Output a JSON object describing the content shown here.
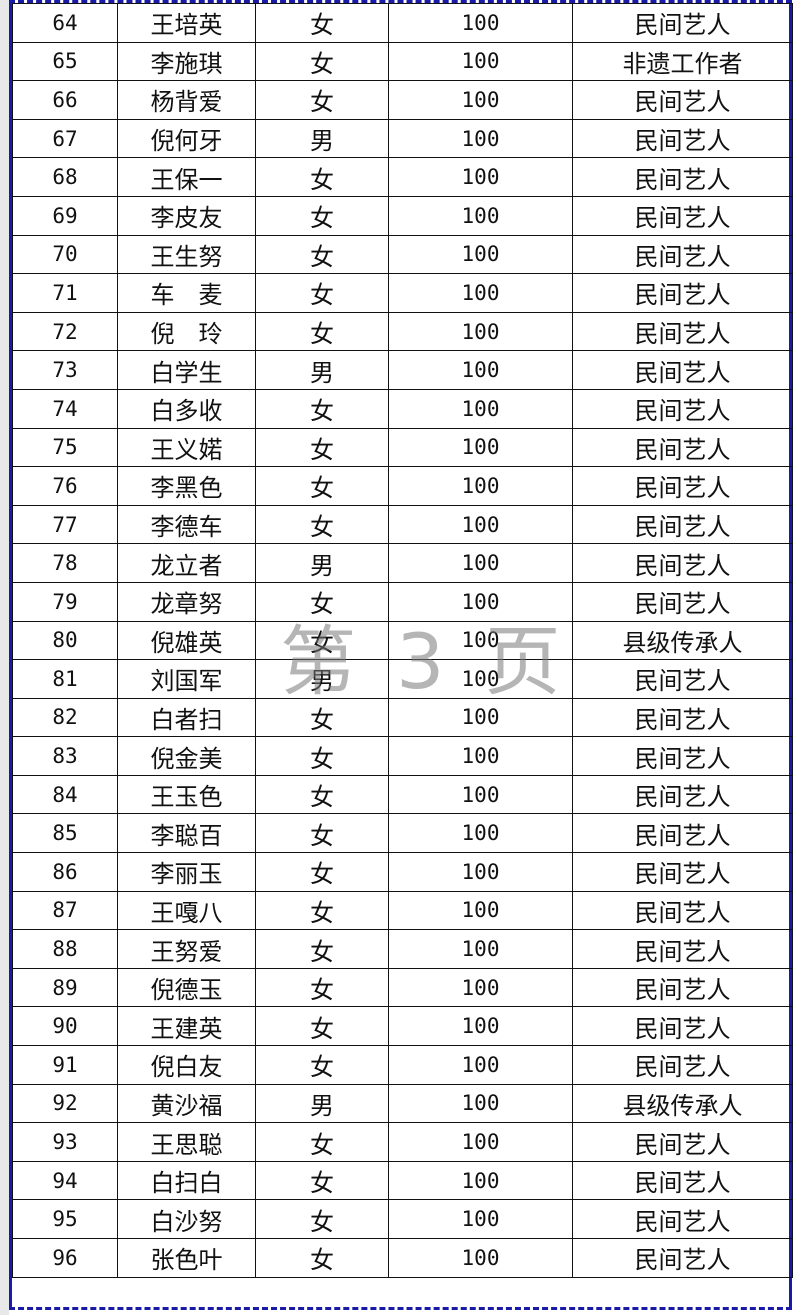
{
  "watermark": "第 3 页",
  "colors": {
    "page_border": "#1a1aa8",
    "grid": "#111111",
    "watermark": "#787878"
  },
  "rows": [
    [
      "64",
      "王培英",
      "女",
      "100",
      "民间艺人"
    ],
    [
      "65",
      "李施琪",
      "女",
      "100",
      "非遗工作者"
    ],
    [
      "66",
      "杨背爱",
      "女",
      "100",
      "民间艺人"
    ],
    [
      "67",
      "倪何牙",
      "男",
      "100",
      "民间艺人"
    ],
    [
      "68",
      "王保一",
      "女",
      "100",
      "民间艺人"
    ],
    [
      "69",
      "李皮友",
      "女",
      "100",
      "民间艺人"
    ],
    [
      "70",
      "王生努",
      "女",
      "100",
      "民间艺人"
    ],
    [
      "71",
      "车　麦",
      "女",
      "100",
      "民间艺人"
    ],
    [
      "72",
      "倪　玲",
      "女",
      "100",
      "民间艺人"
    ],
    [
      "73",
      "白学生",
      "男",
      "100",
      "民间艺人"
    ],
    [
      "74",
      "白多收",
      "女",
      "100",
      "民间艺人"
    ],
    [
      "75",
      "王义婼",
      "女",
      "100",
      "民间艺人"
    ],
    [
      "76",
      "李黑色",
      "女",
      "100",
      "民间艺人"
    ],
    [
      "77",
      "李德车",
      "女",
      "100",
      "民间艺人"
    ],
    [
      "78",
      "龙立者",
      "男",
      "100",
      "民间艺人"
    ],
    [
      "79",
      "龙章努",
      "女",
      "100",
      "民间艺人"
    ],
    [
      "80",
      "倪雄英",
      "女",
      "100",
      "县级传承人"
    ],
    [
      "81",
      "刘国军",
      "男",
      "100",
      "民间艺人"
    ],
    [
      "82",
      "白者扫",
      "女",
      "100",
      "民间艺人"
    ],
    [
      "83",
      "倪金美",
      "女",
      "100",
      "民间艺人"
    ],
    [
      "84",
      "王玉色",
      "女",
      "100",
      "民间艺人"
    ],
    [
      "85",
      "李聪百",
      "女",
      "100",
      "民间艺人"
    ],
    [
      "86",
      "李丽玉",
      "女",
      "100",
      "民间艺人"
    ],
    [
      "87",
      "王嘎八",
      "女",
      "100",
      "民间艺人"
    ],
    [
      "88",
      "王努爱",
      "女",
      "100",
      "民间艺人"
    ],
    [
      "89",
      "倪德玉",
      "女",
      "100",
      "民间艺人"
    ],
    [
      "90",
      "王建英",
      "女",
      "100",
      "民间艺人"
    ],
    [
      "91",
      "倪白友",
      "女",
      "100",
      "民间艺人"
    ],
    [
      "92",
      "黄沙福",
      "男",
      "100",
      "县级传承人"
    ],
    [
      "93",
      "王思聪",
      "女",
      "100",
      "民间艺人"
    ],
    [
      "94",
      "白扫白",
      "女",
      "100",
      "民间艺人"
    ],
    [
      "95",
      "白沙努",
      "女",
      "100",
      "民间艺人"
    ],
    [
      "96",
      "张色叶",
      "女",
      "100",
      "民间艺人"
    ]
  ]
}
